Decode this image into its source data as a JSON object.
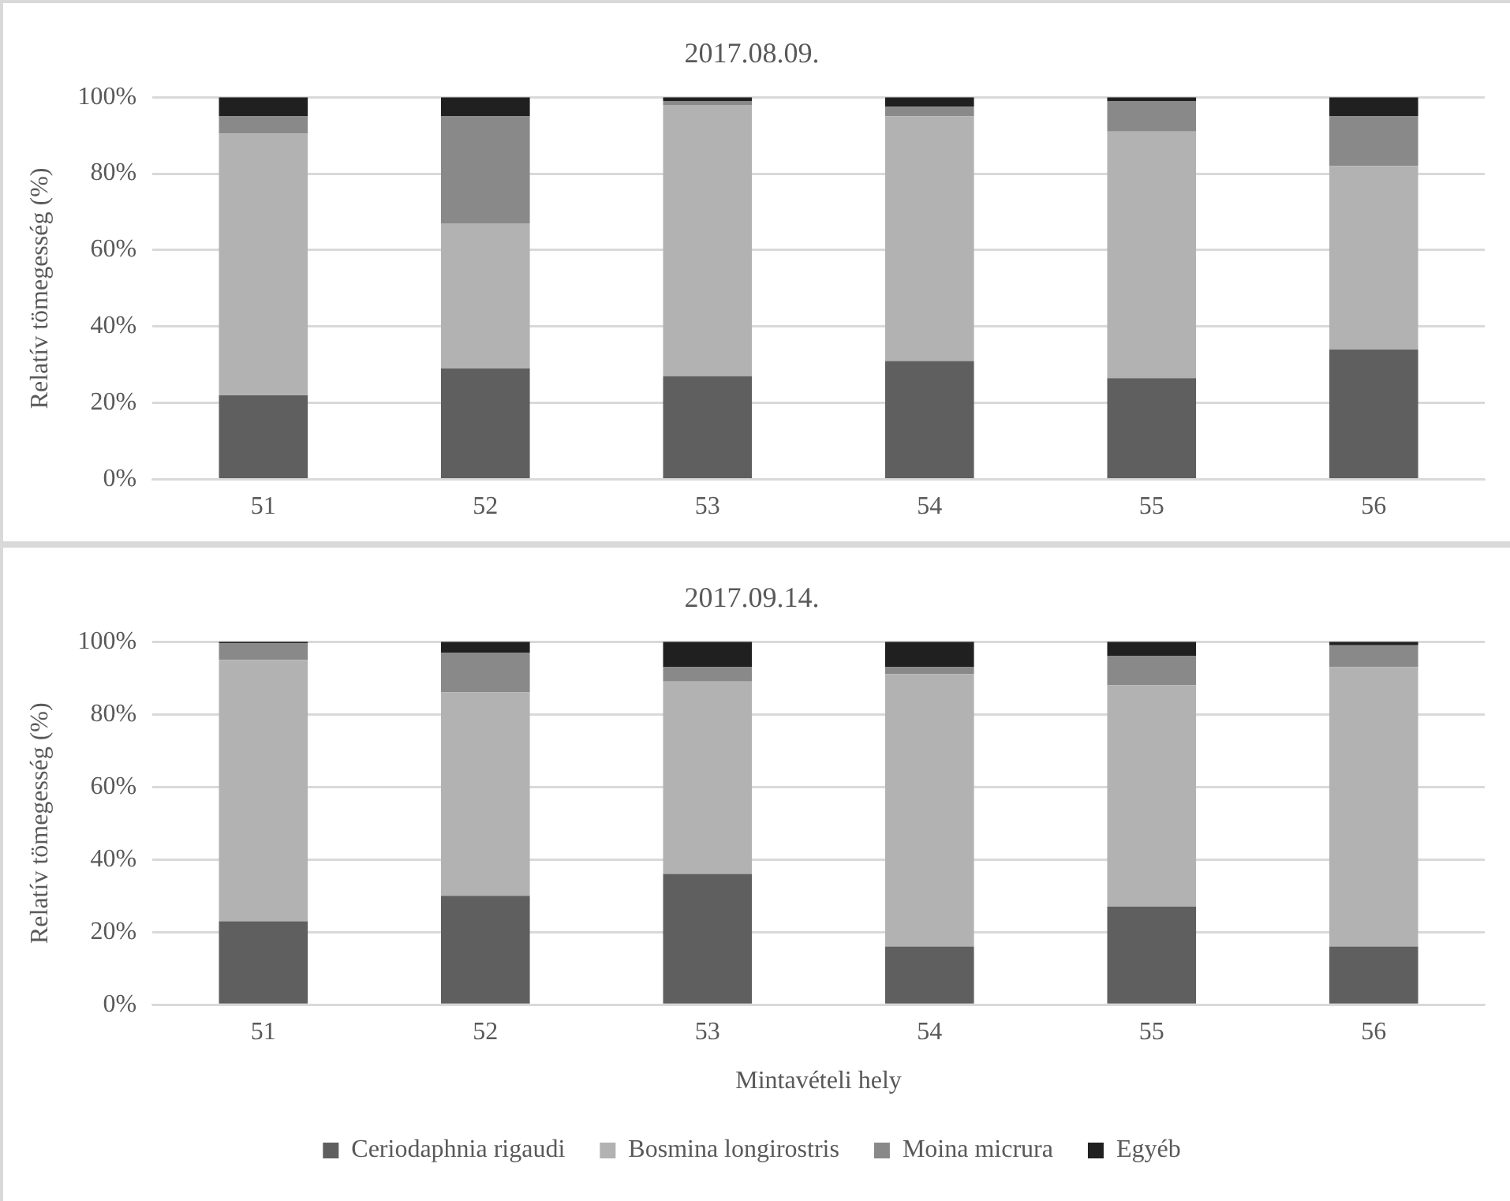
{
  "chart_data": [
    {
      "type": "bar",
      "title": "2017.08.09.",
      "ylabel": "Relatív tömegesség (%)",
      "stacked": true,
      "categories": [
        "51",
        "52",
        "53",
        "54",
        "55",
        "56"
      ],
      "ylim": [
        0,
        100
      ],
      "yticks": [
        {
          "value": 0,
          "label": "0%"
        },
        {
          "value": 20,
          "label": "20%"
        },
        {
          "value": 40,
          "label": "40%"
        },
        {
          "value": 60,
          "label": "60%"
        },
        {
          "value": 80,
          "label": "80%"
        },
        {
          "value": 100,
          "label": "100%"
        }
      ],
      "grid": "y",
      "legend": false,
      "series": [
        {
          "color": "#5f5f5f",
          "values": [
            22,
            29,
            27,
            31,
            26.5,
            34
          ]
        },
        {
          "color": "#b2b2b2",
          "values": [
            68.5,
            38,
            71,
            64,
            64.5,
            48
          ]
        },
        {
          "color": "#898989",
          "values": [
            4.5,
            28,
            1,
            2.5,
            8,
            13
          ]
        },
        {
          "color": "#202020",
          "values": [
            5,
            5,
            1,
            2.5,
            1,
            5
          ]
        }
      ]
    },
    {
      "type": "bar",
      "title": "2017.09.14.",
      "ylabel": "Relatív tömegesség (%)",
      "xlabel": "Mintavételi hely",
      "stacked": true,
      "categories": [
        "51",
        "52",
        "53",
        "54",
        "55",
        "56"
      ],
      "ylim": [
        0,
        100
      ],
      "yticks": [
        {
          "value": 0,
          "label": "0%"
        },
        {
          "value": 20,
          "label": "20%"
        },
        {
          "value": 40,
          "label": "40%"
        },
        {
          "value": 60,
          "label": "60%"
        },
        {
          "value": 80,
          "label": "80%"
        },
        {
          "value": 100,
          "label": "100%"
        }
      ],
      "grid": "y",
      "legend": "bottom",
      "series": [
        {
          "name": "Ceriodaphnia rigaudi",
          "color": "#5f5f5f",
          "values": [
            23,
            30,
            36,
            16,
            27,
            16
          ]
        },
        {
          "name": "Bosmina longirostris",
          "color": "#b2b2b2",
          "values": [
            72,
            56,
            53,
            75,
            61,
            77
          ]
        },
        {
          "name": "Moina micrura",
          "color": "#898989",
          "values": [
            4.5,
            11,
            4,
            2,
            8,
            6
          ]
        },
        {
          "name": "Egyéb",
          "color": "#202020",
          "values": [
            0.5,
            3,
            7,
            7,
            4,
            1
          ]
        }
      ]
    }
  ]
}
